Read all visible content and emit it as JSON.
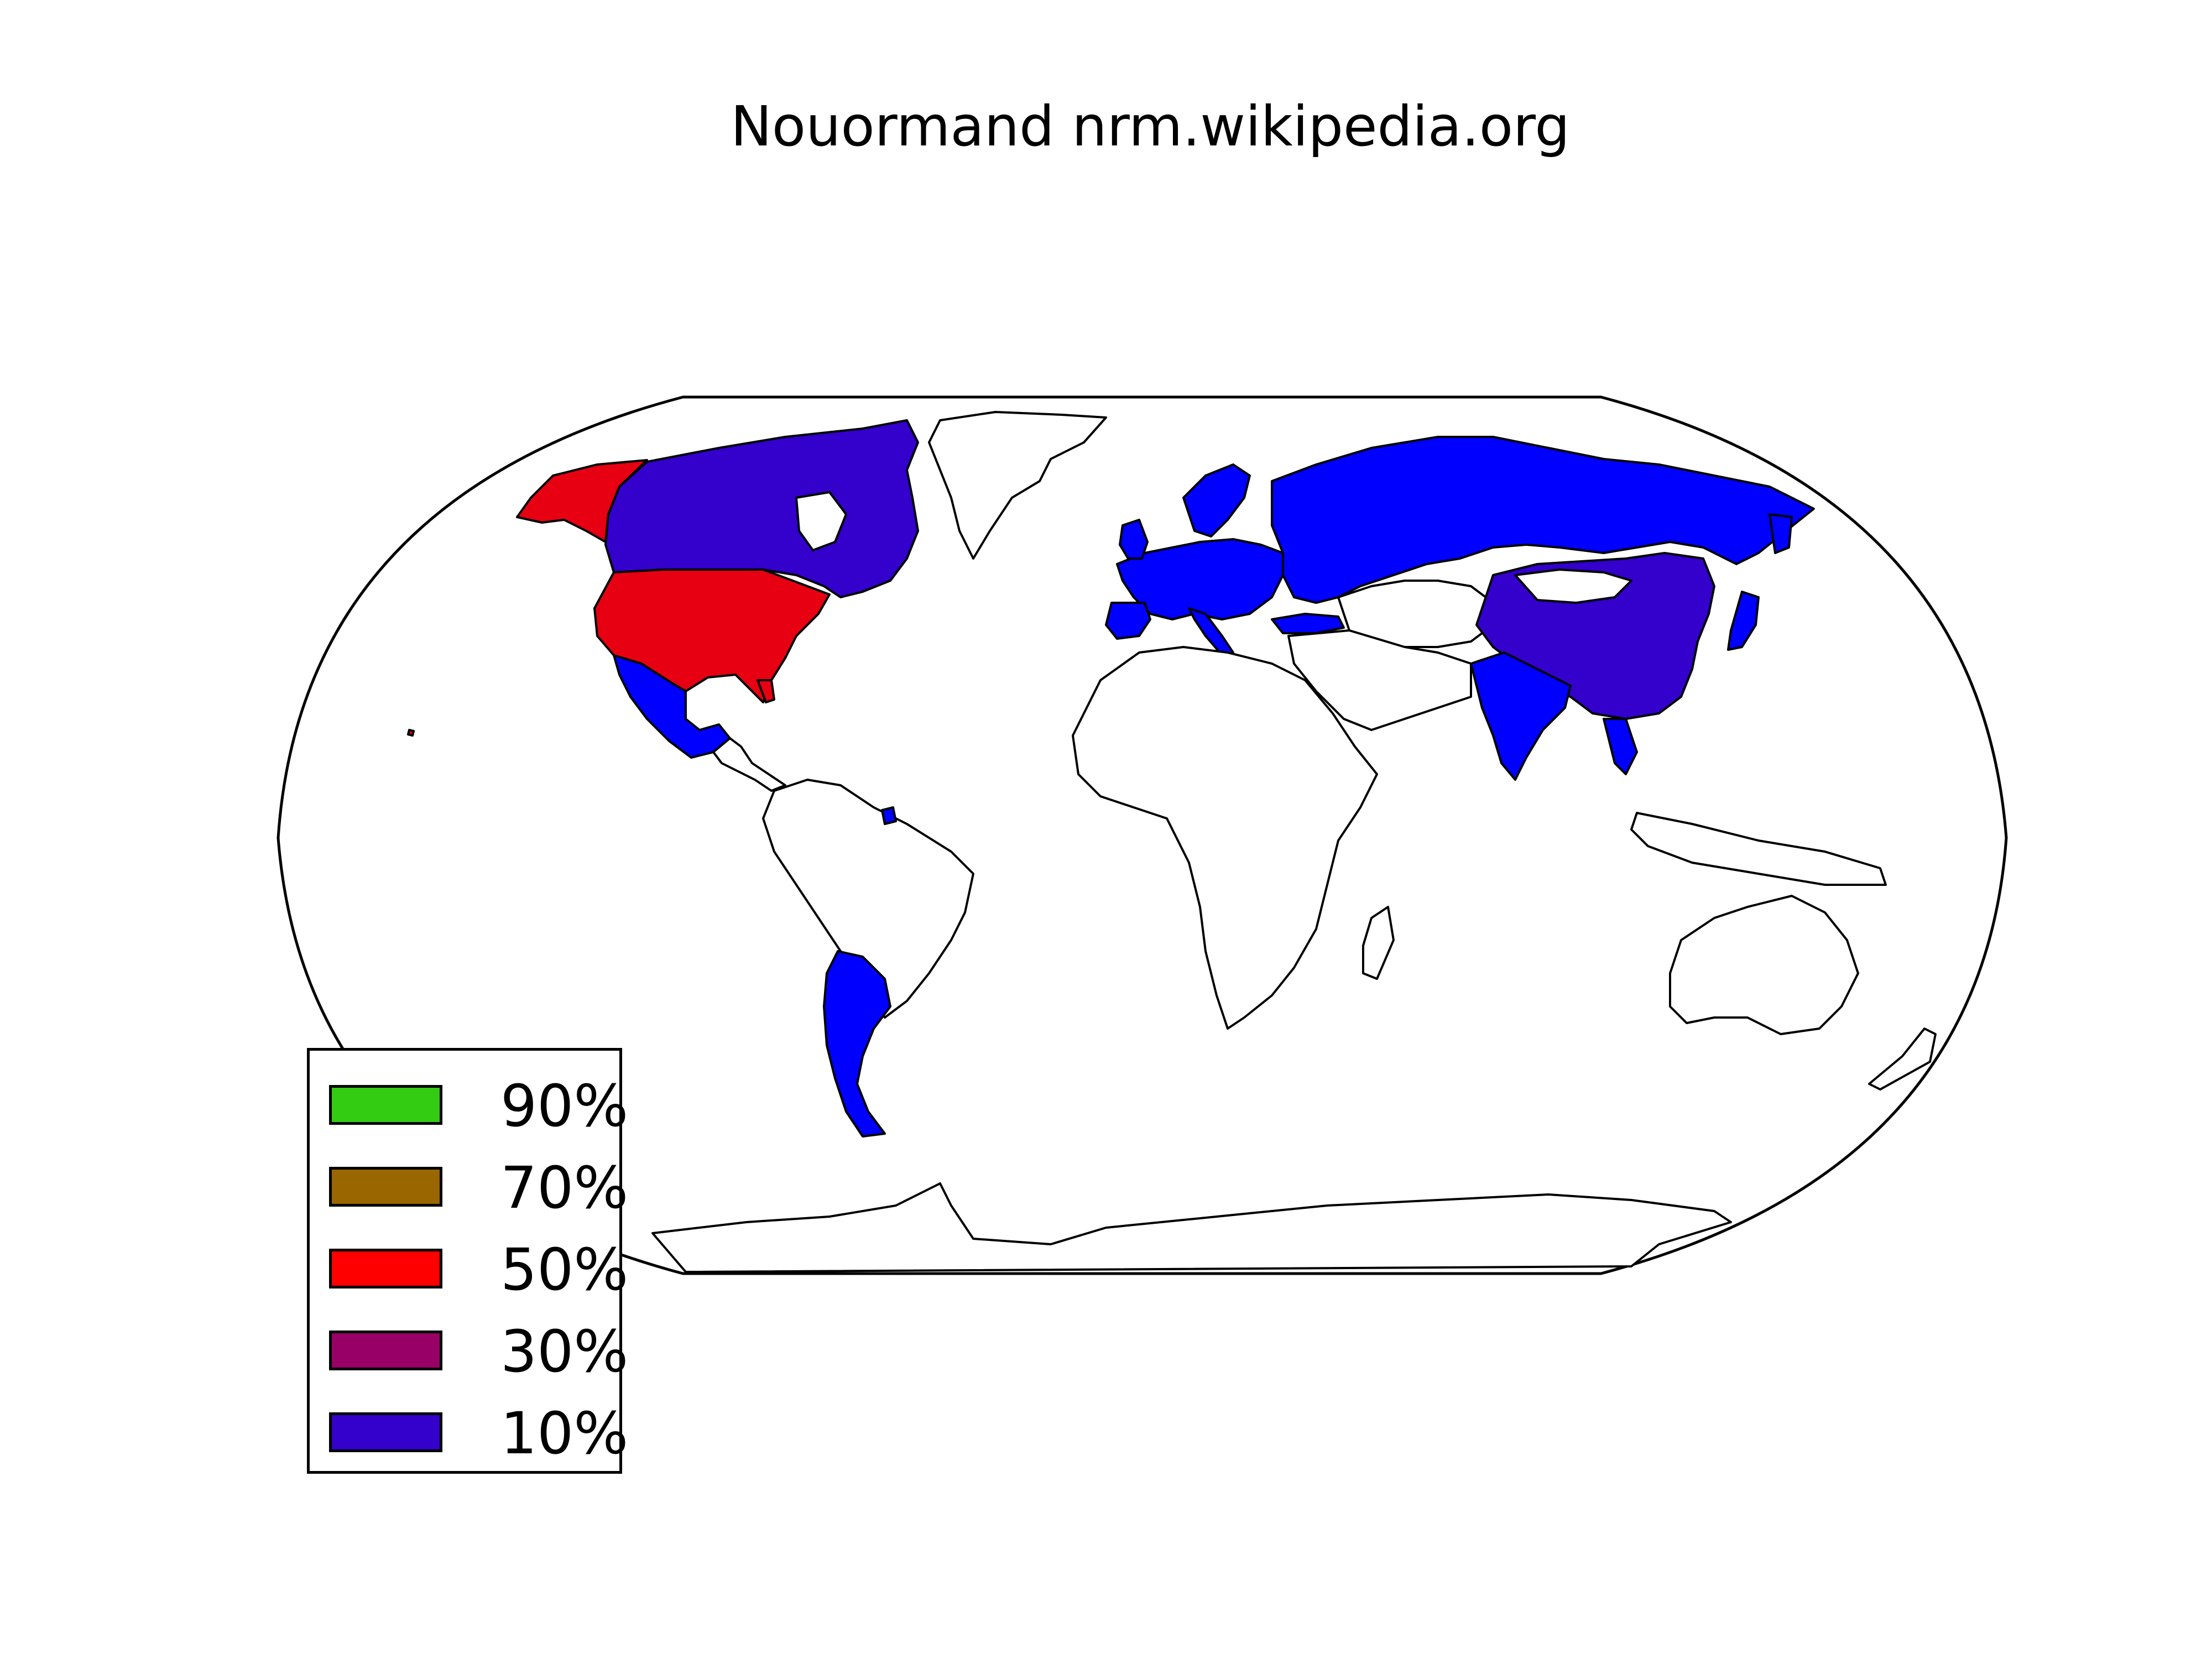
{
  "title": "Nouormand nrm.wikipedia.org",
  "colors": {
    "ocean": "#ffffff",
    "land": "#ffffff",
    "border": "#000000",
    "share_10": "#3300cc",
    "share_bright": "#0000ff",
    "share_50": "#e60012"
  },
  "legend": [
    {
      "label": "90%",
      "color": "#33cc12"
    },
    {
      "label": "70%",
      "color": "#996600"
    },
    {
      "label": "50%",
      "color": "#ff0000"
    },
    {
      "label": "30%",
      "color": "#990066"
    },
    {
      "label": "10%",
      "color": "#3300cc"
    }
  ]
}
